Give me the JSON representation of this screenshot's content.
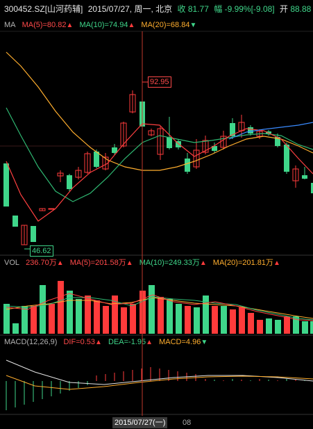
{
  "header": {
    "code": "300452.SZ",
    "name": "[山河药辅]",
    "date": "2015/07/27, 周一, 北京",
    "close_label": "收",
    "close_value": "81.77",
    "change_label": "幅",
    "change_value": "-9.99%[-9.08]",
    "open_label": "开",
    "open_value": "88.88"
  },
  "ma": {
    "label": "MA",
    "ma5": "MA(5)=80.82",
    "ma10": "MA(10)=74.94",
    "ma20": "MA(20)=68.84"
  },
  "price_labels": {
    "high": "92.95",
    "low": "46.62"
  },
  "vol": {
    "label": "VOL",
    "value": "236.70万",
    "ma5": "MA(5)=201.58万",
    "ma10": "MA(10)=249.33万",
    "ma20": "MA(20)=201.81万"
  },
  "macd": {
    "label": "MACD(12,26,9)",
    "dif": "DIF=0.53",
    "dea": "DEA=-1.95",
    "macd": "MACD=4.96"
  },
  "timeline": {
    "selected_date": "2015/07/27(一)",
    "tick": "08"
  },
  "colors": {
    "up": "#ff3b3b",
    "down": "#3fd68a",
    "ma5": "#ff4040",
    "ma10": "#2fb872",
    "ma20": "#ffae2e",
    "ma_extra": "#3a8bff",
    "crosshair": "#c0392b"
  }
}
